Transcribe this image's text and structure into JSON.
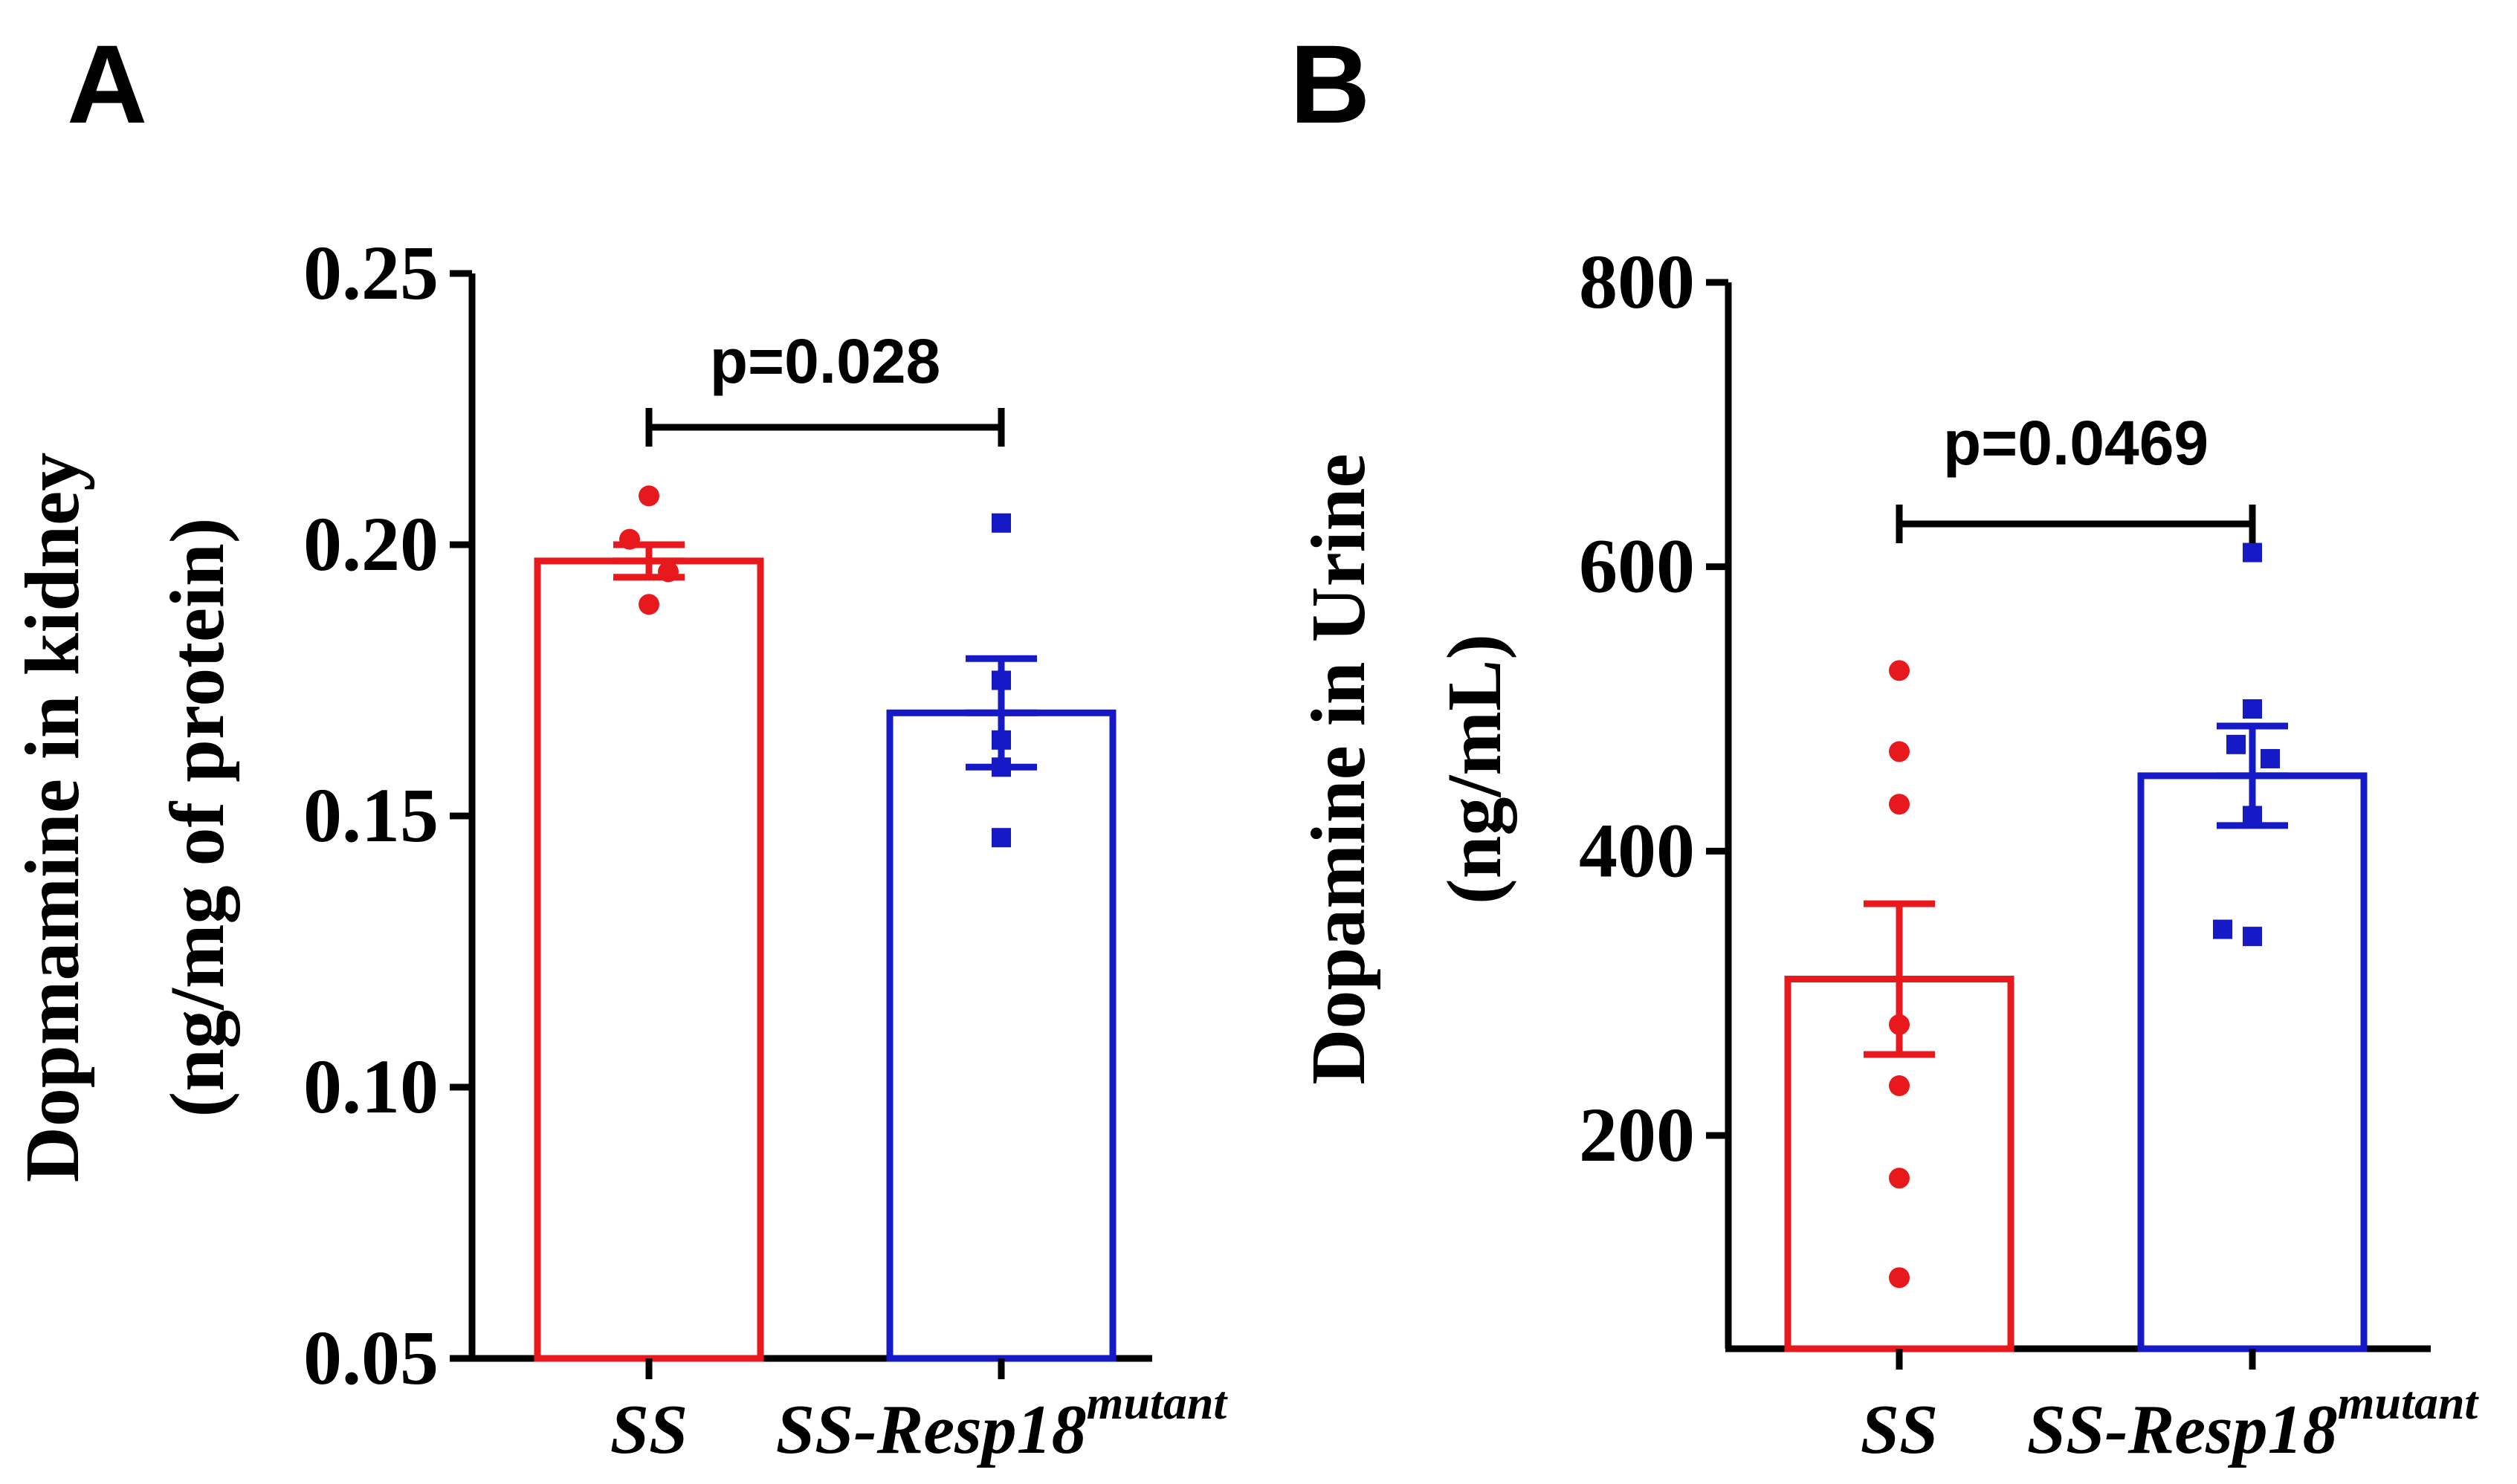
{
  "chart_data": [
    {
      "type": "bar",
      "panel": "A",
      "categories": [
        {
          "name": "SS",
          "superscript": ""
        },
        {
          "name": "SS-Resp18",
          "superscript": "mutant"
        }
      ],
      "colors": [
        "#e8191c",
        "#1519c6"
      ],
      "values": [
        0.197,
        0.169
      ],
      "sem": [
        0.003,
        0.01
      ],
      "points": [
        [
          0.209,
          0.201,
          0.195,
          0.189
        ],
        [
          0.204,
          0.175,
          0.164,
          0.159,
          0.146
        ]
      ],
      "ylabel_lines": [
        "Dopmamine in kidney",
        "(ng/mg of protein)"
      ],
      "ylim": [
        0.05,
        0.25
      ],
      "yticks": [
        0.05,
        0.1,
        0.15,
        0.2,
        0.25
      ],
      "ytick_labels": [
        "0.05",
        "0.10",
        "0.15",
        "0.20",
        "0.25"
      ],
      "annotation": "p=0.028"
    },
    {
      "type": "bar",
      "panel": "B",
      "categories": [
        {
          "name": "SS",
          "superscript": ""
        },
        {
          "name": "SS-Resp18",
          "superscript": "mutant"
        }
      ],
      "colors": [
        "#e8191c",
        "#1519c6"
      ],
      "values": [
        310,
        453
      ],
      "sem": [
        53,
        35
      ],
      "points": [
        [
          527,
          470,
          433,
          278,
          235,
          170,
          100
        ],
        [
          610,
          500,
          475,
          465,
          425,
          345,
          340
        ]
      ],
      "ylabel_lines": [
        "Dopamine in Urine",
        "(ng/mL)"
      ],
      "ylim": [
        50,
        800
      ],
      "yticks": [
        200,
        400,
        600,
        800
      ],
      "ytick_labels": [
        "200",
        "400",
        "600",
        "800"
      ],
      "annotation": "p=0.0469"
    }
  ]
}
